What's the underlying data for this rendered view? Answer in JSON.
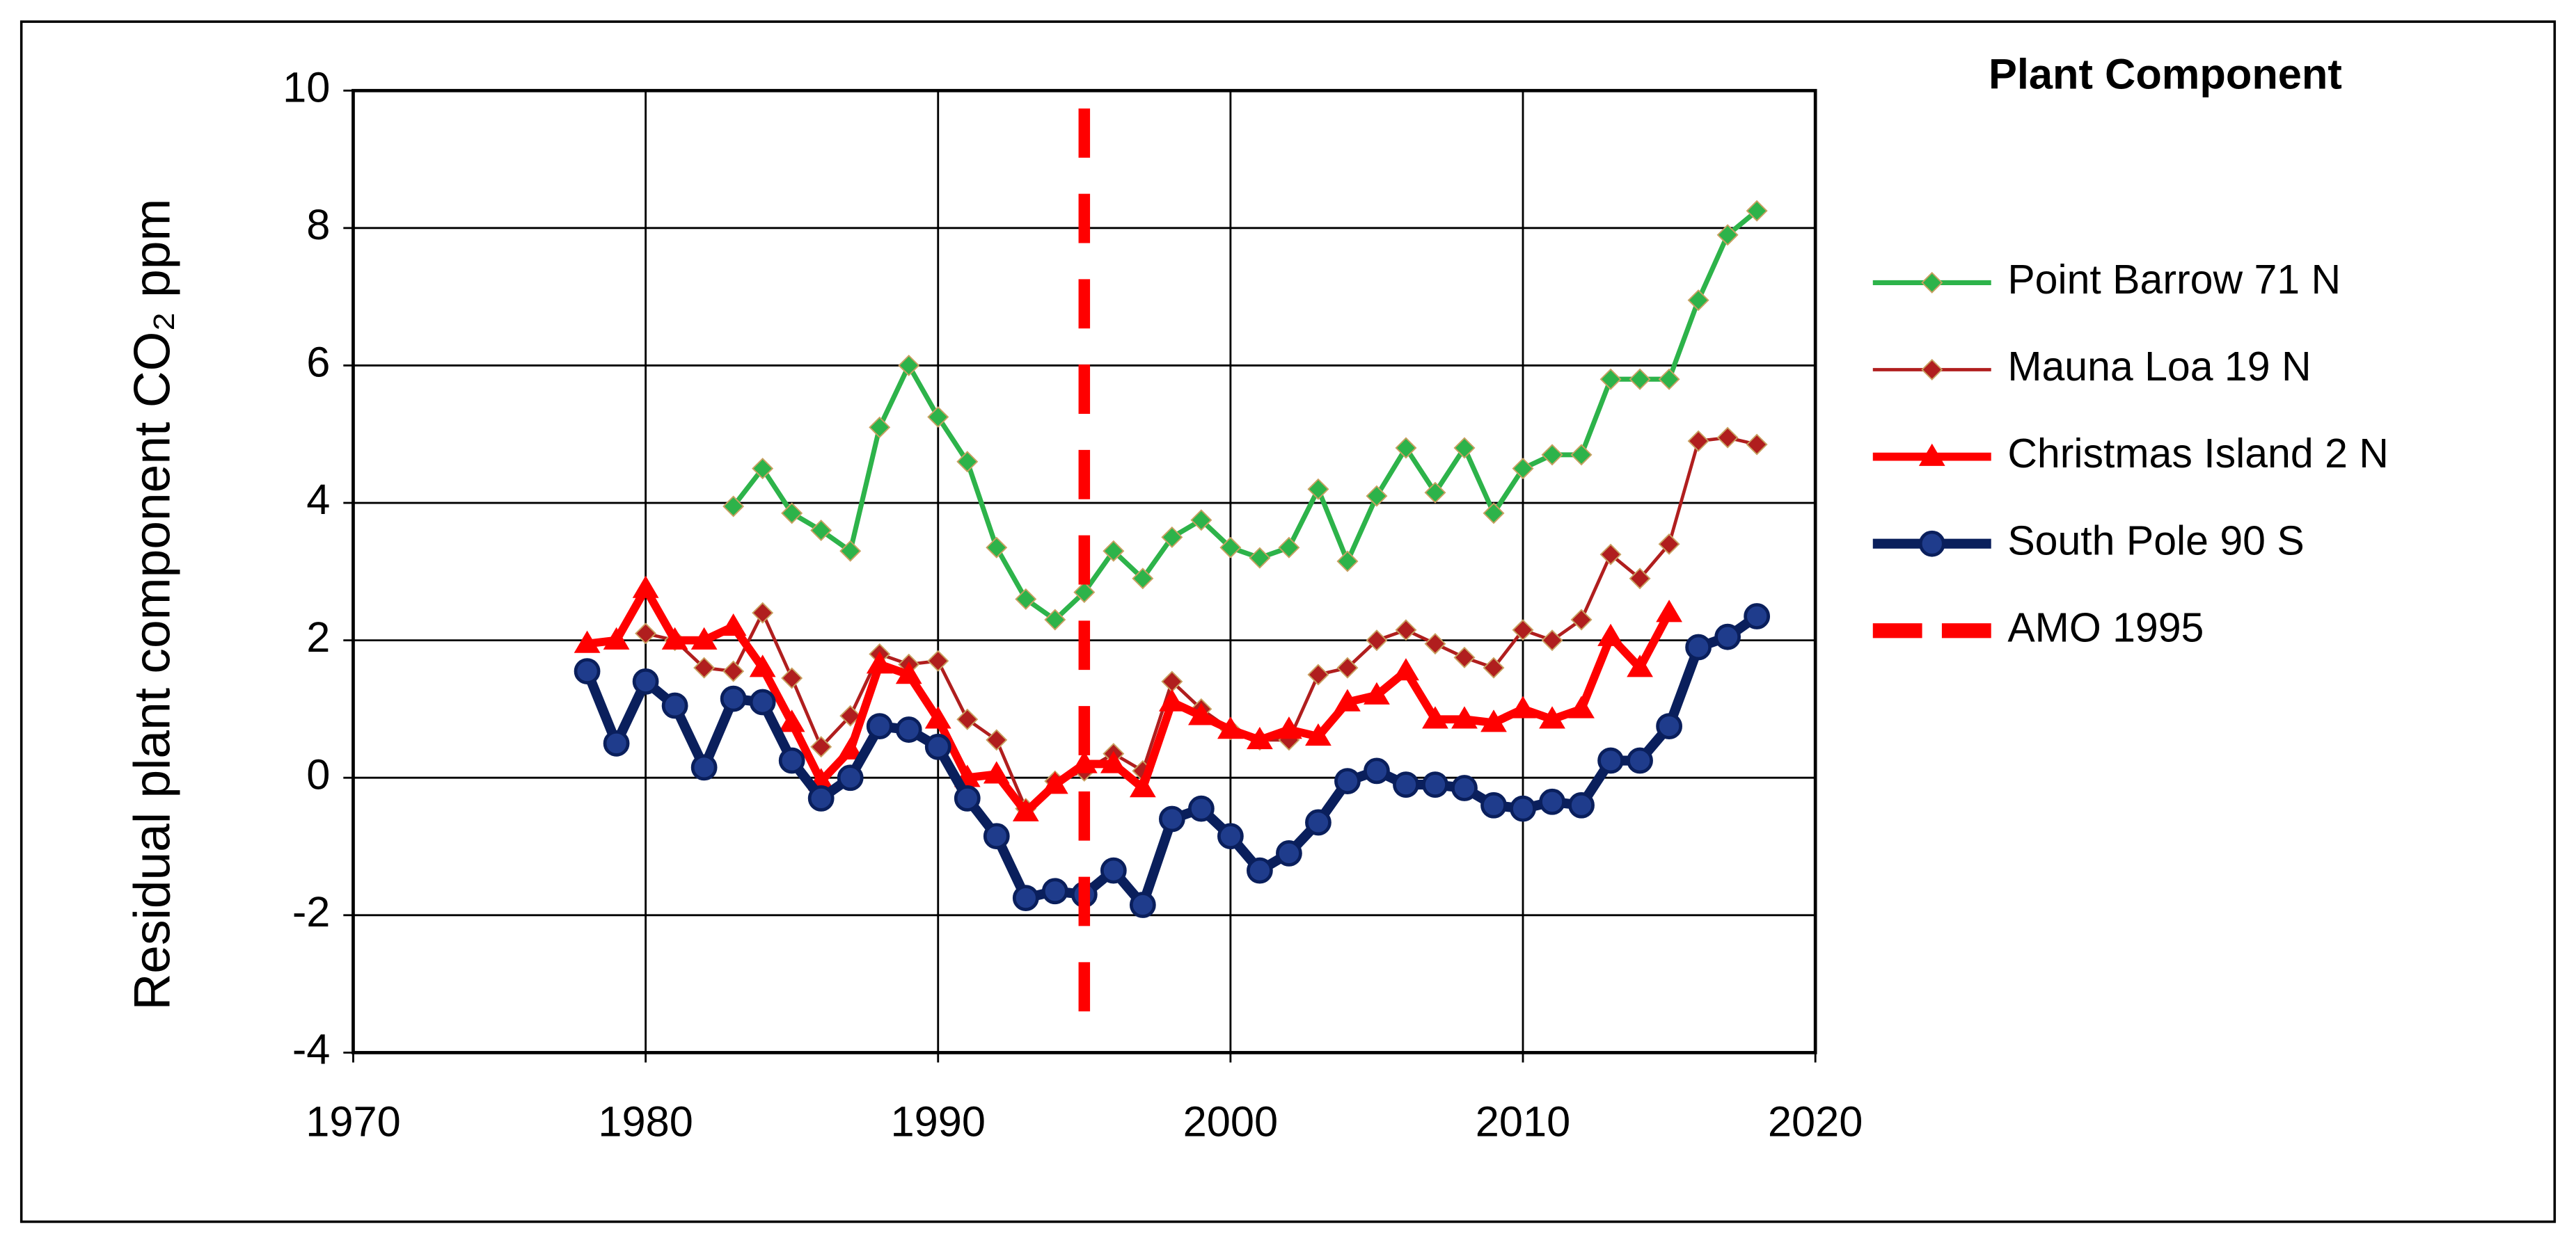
{
  "chart_data": {
    "type": "line",
    "title": "Plant Component",
    "y_label": "Residual plant component CO₂ ppm",
    "x": [
      1978,
      1979,
      1980,
      1981,
      1982,
      1983,
      1984,
      1985,
      1986,
      1987,
      1988,
      1989,
      1990,
      1991,
      1992,
      1993,
      1994,
      1995,
      1996,
      1997,
      1998,
      1999,
      2000,
      2001,
      2002,
      2003,
      2004,
      2005,
      2006,
      2007,
      2008,
      2009,
      2010,
      2011,
      2012,
      2013,
      2014,
      2015,
      2016,
      2017,
      2018
    ],
    "series": [
      {
        "name": "Point Barrow 71 N",
        "color": "#2db34a",
        "marker": "diamond",
        "values": [
          null,
          null,
          null,
          null,
          null,
          3.95,
          4.5,
          3.85,
          3.6,
          3.3,
          5.1,
          6.0,
          5.25,
          4.6,
          3.35,
          2.6,
          2.3,
          2.7,
          3.3,
          2.9,
          3.5,
          3.75,
          3.35,
          3.2,
          3.35,
          4.2,
          3.15,
          4.1,
          4.8,
          4.15,
          4.8,
          3.85,
          4.5,
          4.7,
          4.7,
          5.8,
          5.8,
          5.8,
          6.95,
          7.9,
          8.25
        ]
      },
      {
        "name": "Mauna Loa 19 N",
        "color": "#b01e1e",
        "marker": "diamond",
        "values": [
          null,
          null,
          2.1,
          2.0,
          1.6,
          1.55,
          2.4,
          1.45,
          0.45,
          0.9,
          1.8,
          1.65,
          1.7,
          0.85,
          0.55,
          -0.45,
          -0.05,
          0.1,
          0.35,
          0.1,
          1.4,
          1.0,
          0.7,
          0.55,
          0.55,
          1.5,
          1.6,
          2.0,
          2.15,
          1.95,
          1.75,
          1.6,
          2.15,
          2.0,
          2.3,
          3.25,
          2.9,
          3.4,
          4.9,
          4.95,
          4.85
        ]
      },
      {
        "name": "Christmas Island 2 N",
        "color": "#ff0000",
        "marker": "triangle",
        "values": [
          1.95,
          2.0,
          2.75,
          2.0,
          2.0,
          2.2,
          1.6,
          0.8,
          -0.05,
          0.4,
          1.65,
          1.5,
          0.85,
          0.0,
          0.05,
          -0.5,
          -0.1,
          0.2,
          0.2,
          -0.15,
          1.1,
          0.9,
          0.7,
          0.55,
          0.7,
          0.6,
          1.1,
          1.2,
          1.55,
          0.85,
          0.85,
          0.8,
          1.0,
          0.85,
          1.0,
          2.05,
          1.6,
          2.4,
          null,
          null,
          null
        ]
      },
      {
        "name": "South Pole 90 S",
        "color": "#0a1f5c",
        "marker": "circle",
        "values": [
          1.55,
          0.5,
          1.4,
          1.05,
          0.15,
          1.15,
          1.1,
          0.25,
          -0.3,
          0.0,
          0.75,
          0.7,
          0.45,
          -0.3,
          -0.85,
          -1.75,
          -1.65,
          -1.7,
          -1.35,
          -1.85,
          -0.6,
          -0.45,
          -0.85,
          -1.35,
          -1.1,
          -0.65,
          -0.05,
          0.1,
          -0.1,
          -0.1,
          -0.15,
          -0.4,
          -0.45,
          -0.35,
          -0.4,
          0.25,
          0.25,
          0.75,
          1.9,
          2.05,
          2.35
        ]
      },
      {
        "name": "AMO 1995",
        "color": "#ff0000",
        "marker": "dash",
        "x": [
          1995,
          1995
        ],
        "values": [
          -3.4,
          10
        ]
      }
    ],
    "xlim": [
      1970,
      2020
    ],
    "xticks": [
      1970,
      1980,
      1990,
      2000,
      2010,
      2020
    ],
    "ylim": [
      -4,
      10
    ],
    "yticks": [
      -4,
      -2,
      0,
      2,
      4,
      6,
      8,
      10
    ],
    "grid": true,
    "legend": "right"
  }
}
